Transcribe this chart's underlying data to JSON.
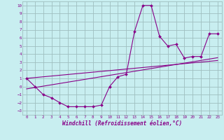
{
  "title": "",
  "xlabel": "Windchill (Refroidissement éolien,°C)",
  "ylabel": "",
  "bg_color": "#c8eef0",
  "grid_color": "#9fbfbf",
  "line_color": "#880088",
  "xlim": [
    -0.5,
    23.5
  ],
  "ylim": [
    -3.5,
    10.5
  ],
  "xticks": [
    0,
    1,
    2,
    3,
    4,
    5,
    6,
    7,
    8,
    9,
    10,
    11,
    12,
    13,
    14,
    15,
    16,
    17,
    18,
    19,
    20,
    21,
    22,
    23
  ],
  "yticks": [
    -3,
    -2,
    -1,
    0,
    1,
    2,
    3,
    4,
    5,
    6,
    7,
    8,
    9,
    10
  ],
  "data_x": [
    0,
    1,
    2,
    3,
    4,
    5,
    6,
    7,
    8,
    9,
    10,
    11,
    12,
    13,
    14,
    15,
    16,
    17,
    18,
    19,
    20,
    21,
    22,
    23
  ],
  "data_y": [
    1,
    0,
    -1,
    -1.4,
    -2,
    -2.5,
    -2.5,
    -2.5,
    -2.5,
    -2.3,
    0,
    1.2,
    1.5,
    6.8,
    10,
    10,
    6.2,
    5,
    5.2,
    3.5,
    3.7,
    3.7,
    6.5,
    6.5
  ],
  "line1_x": [
    0,
    23
  ],
  "line1_y": [
    -0.3,
    3.55
  ],
  "line2_x": [
    0,
    23
  ],
  "line2_y": [
    1.0,
    3.2
  ]
}
